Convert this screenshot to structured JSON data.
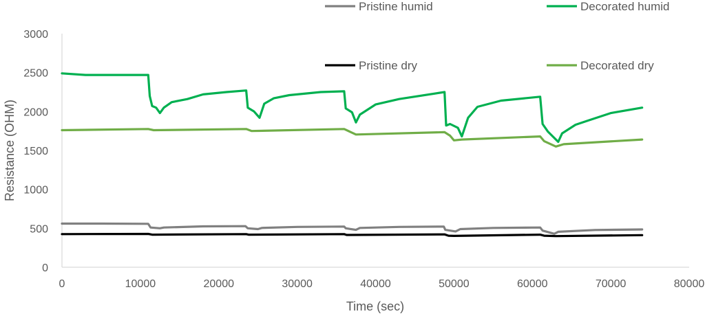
{
  "chart_data": {
    "type": "line",
    "title": "",
    "xlabel": "Time (sec)",
    "ylabel": "Resistance (OHM)",
    "xlim": [
      0,
      80000
    ],
    "ylim": [
      0,
      3000
    ],
    "x_ticks": [
      "0",
      "10000",
      "20000",
      "30000",
      "40000",
      "50000",
      "60000",
      "70000",
      "80000"
    ],
    "y_ticks": [
      "0",
      "500",
      "1000",
      "1500",
      "2000",
      "2500",
      "3000"
    ],
    "grid": false,
    "legend_position": "top",
    "series": [
      {
        "name": "Pristine humid",
        "color": "#808080",
        "points": [
          [
            0,
            560
          ],
          [
            5000,
            560
          ],
          [
            11000,
            558
          ],
          [
            11300,
            510
          ],
          [
            12500,
            500
          ],
          [
            13000,
            510
          ],
          [
            18000,
            525
          ],
          [
            23400,
            528
          ],
          [
            23700,
            500
          ],
          [
            25000,
            490
          ],
          [
            25500,
            505
          ],
          [
            30000,
            518
          ],
          [
            36000,
            522
          ],
          [
            36200,
            500
          ],
          [
            37500,
            480
          ],
          [
            38000,
            505
          ],
          [
            43000,
            518
          ],
          [
            48700,
            522
          ],
          [
            48900,
            480
          ],
          [
            50200,
            460
          ],
          [
            50800,
            490
          ],
          [
            55000,
            505
          ],
          [
            61000,
            510
          ],
          [
            61300,
            470
          ],
          [
            62800,
            430
          ],
          [
            63300,
            455
          ],
          [
            68000,
            478
          ],
          [
            74000,
            485
          ]
        ]
      },
      {
        "name": "Decorated humid",
        "color": "#00B050",
        "points": [
          [
            0,
            2490
          ],
          [
            3000,
            2470
          ],
          [
            8000,
            2470
          ],
          [
            11000,
            2470
          ],
          [
            11200,
            2200
          ],
          [
            11500,
            2070
          ],
          [
            12000,
            2050
          ],
          [
            12500,
            1980
          ],
          [
            13000,
            2050
          ],
          [
            14000,
            2120
          ],
          [
            16000,
            2160
          ],
          [
            18000,
            2220
          ],
          [
            21000,
            2250
          ],
          [
            23500,
            2270
          ],
          [
            23700,
            2050
          ],
          [
            24500,
            2000
          ],
          [
            25200,
            1920
          ],
          [
            25800,
            2100
          ],
          [
            27000,
            2170
          ],
          [
            29000,
            2210
          ],
          [
            33000,
            2250
          ],
          [
            36000,
            2260
          ],
          [
            36200,
            2040
          ],
          [
            37000,
            1990
          ],
          [
            37500,
            1860
          ],
          [
            38000,
            1960
          ],
          [
            40000,
            2090
          ],
          [
            43000,
            2160
          ],
          [
            48800,
            2250
          ],
          [
            49000,
            1820
          ],
          [
            49500,
            1840
          ],
          [
            50500,
            1790
          ],
          [
            51000,
            1680
          ],
          [
            51800,
            1920
          ],
          [
            53000,
            2060
          ],
          [
            56000,
            2140
          ],
          [
            61000,
            2190
          ],
          [
            61300,
            1840
          ],
          [
            62000,
            1740
          ],
          [
            63300,
            1610
          ],
          [
            63800,
            1720
          ],
          [
            65500,
            1830
          ],
          [
            67000,
            1880
          ],
          [
            70000,
            1980
          ],
          [
            74000,
            2050
          ]
        ]
      },
      {
        "name": "Pristine dry",
        "color": "#000000",
        "points": [
          [
            0,
            425
          ],
          [
            11000,
            428
          ],
          [
            11500,
            418
          ],
          [
            23500,
            425
          ],
          [
            23800,
            418
          ],
          [
            36000,
            425
          ],
          [
            36300,
            415
          ],
          [
            48800,
            422
          ],
          [
            49300,
            405
          ],
          [
            50000,
            402
          ],
          [
            61000,
            418
          ],
          [
            61500,
            405
          ],
          [
            63000,
            400
          ],
          [
            74000,
            412
          ]
        ]
      },
      {
        "name": "Decorated dry",
        "color": "#70AD47",
        "points": [
          [
            0,
            1760
          ],
          [
            11000,
            1775
          ],
          [
            11700,
            1760
          ],
          [
            23500,
            1775
          ],
          [
            24200,
            1750
          ],
          [
            36000,
            1775
          ],
          [
            37500,
            1705
          ],
          [
            48800,
            1735
          ],
          [
            49500,
            1690
          ],
          [
            50000,
            1630
          ],
          [
            51000,
            1640
          ],
          [
            61000,
            1680
          ],
          [
            61500,
            1620
          ],
          [
            63000,
            1550
          ],
          [
            64000,
            1580
          ],
          [
            74000,
            1640
          ]
        ]
      }
    ]
  }
}
